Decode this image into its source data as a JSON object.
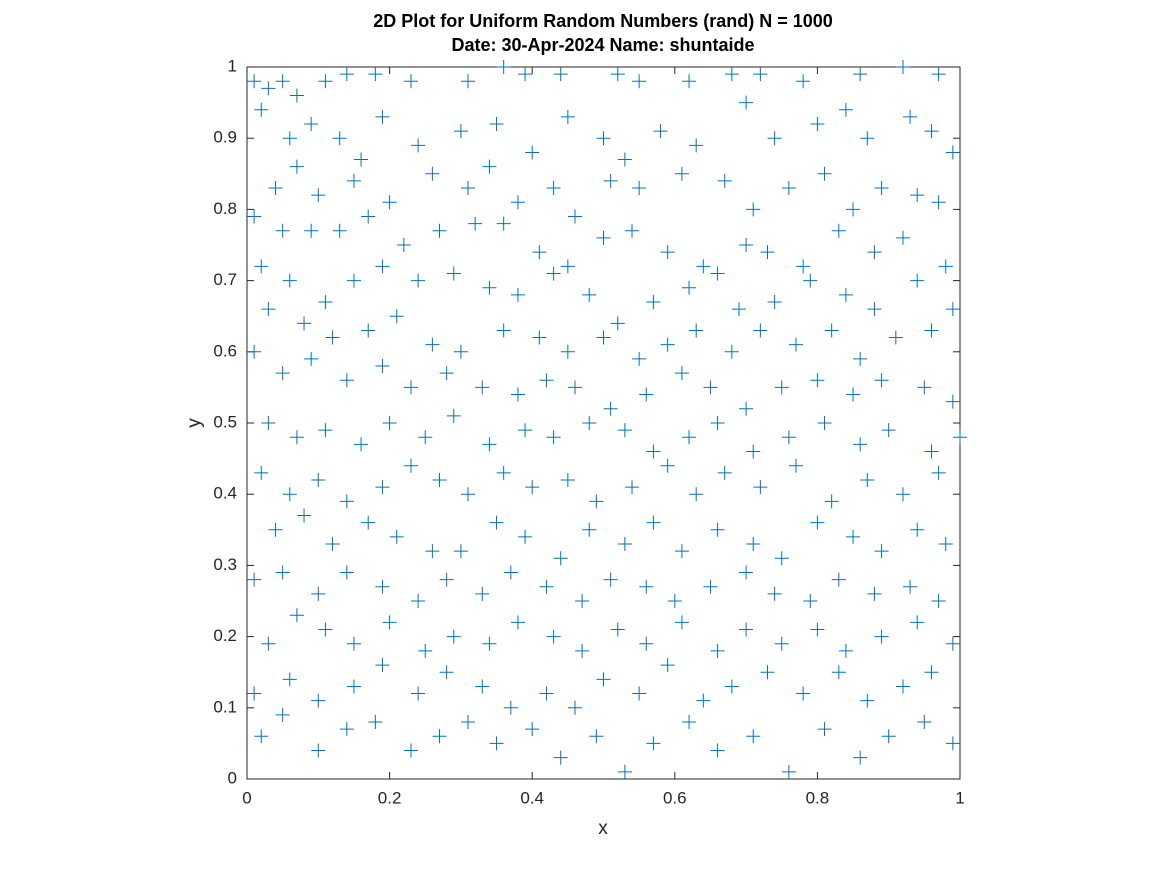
{
  "chart_data": {
    "type": "scatter",
    "title": "2D Plot for Uniform Random Numbers (rand) N = 1000",
    "subtitle": "Date: 30-Apr-2024 Name: shuntaide",
    "x_label": "x",
    "y_label": "y",
    "xlim": [
      0,
      1
    ],
    "ylim": [
      0,
      1
    ],
    "xticks": [
      0,
      0.2,
      0.4,
      0.6,
      0.8,
      1
    ],
    "yticks": [
      0,
      0.1,
      0.2,
      0.3,
      0.4,
      0.5,
      0.6,
      0.7,
      0.8,
      0.9,
      1
    ],
    "marker": "+",
    "color": "#0072bd",
    "grid": false,
    "x": [
      0.01,
      0.03,
      0.05,
      0.07,
      0.11,
      0.14,
      0.18,
      0.23,
      0.31,
      0.36,
      0.39,
      0.44,
      0.52,
      0.55,
      0.62,
      0.68,
      0.72,
      0.78,
      0.86,
      0.92,
      0.97,
      0.02,
      0.06,
      0.09,
      0.13,
      0.16,
      0.19,
      0.24,
      0.3,
      0.35,
      0.4,
      0.45,
      0.5,
      0.53,
      0.58,
      0.63,
      0.7,
      0.74,
      0.8,
      0.84,
      0.87,
      0.93,
      0.96,
      0.99,
      0.04,
      0.07,
      0.1,
      0.15,
      0.2,
      0.26,
      0.31,
      0.34,
      0.38,
      0.43,
      0.46,
      0.51,
      0.55,
      0.61,
      0.67,
      0.71,
      0.76,
      0.81,
      0.85,
      0.89,
      0.94,
      0.97,
      0.01,
      0.05,
      0.09,
      0.13,
      0.17,
      0.22,
      0.27,
      0.32,
      0.36,
      0.41,
      0.45,
      0.5,
      0.54,
      0.59,
      0.64,
      0.7,
      0.73,
      0.78,
      0.83,
      0.88,
      0.92,
      0.98,
      0.02,
      0.06,
      0.11,
      0.15,
      0.19,
      0.24,
      0.29,
      0.34,
      0.38,
      0.43,
      0.48,
      0.52,
      0.57,
      0.62,
      0.66,
      0.69,
      0.74,
      0.79,
      0.84,
      0.88,
      0.94,
      0.99,
      0.03,
      0.08,
      0.12,
      0.17,
      0.21,
      0.26,
      0.3,
      0.36,
      0.41,
      0.45,
      0.5,
      0.55,
      0.59,
      0.63,
      0.68,
      0.72,
      0.77,
      0.82,
      0.86,
      0.91,
      0.96,
      0.01,
      0.05,
      0.09,
      0.14,
      0.19,
      0.23,
      0.28,
      0.33,
      0.38,
      0.42,
      0.46,
      0.51,
      0.56,
      0.61,
      0.65,
      0.7,
      0.75,
      0.8,
      0.85,
      0.89,
      0.95,
      0.99,
      0.03,
      0.07,
      0.11,
      0.16,
      0.2,
      0.25,
      0.29,
      0.34,
      0.39,
      0.43,
      0.48,
      0.53,
      0.57,
      0.62,
      0.66,
      0.71,
      0.76,
      0.81,
      0.86,
      0.9,
      0.96,
      1.0,
      0.02,
      0.06,
      0.1,
      0.14,
      0.19,
      0.23,
      0.27,
      0.31,
      0.36,
      0.4,
      0.45,
      0.49,
      0.54,
      0.59,
      0.63,
      0.67,
      0.72,
      0.77,
      0.82,
      0.87,
      0.92,
      0.97,
      0.04,
      0.08,
      0.12,
      0.17,
      0.21,
      0.26,
      0.3,
      0.35,
      0.39,
      0.44,
      0.48,
      0.53,
      0.57,
      0.61,
      0.66,
      0.71,
      0.75,
      0.8,
      0.85,
      0.89,
      0.94,
      0.98,
      0.01,
      0.05,
      0.1,
      0.14,
      0.19,
      0.24,
      0.28,
      0.33,
      0.37,
      0.42,
      0.47,
      0.51,
      0.56,
      0.6,
      0.65,
      0.7,
      0.74,
      0.79,
      0.83,
      0.88,
      0.93,
      0.97,
      0.03,
      0.07,
      0.11,
      0.15,
      0.2,
      0.25,
      0.29,
      0.34,
      0.38,
      0.43,
      0.47,
      0.52,
      0.56,
      0.61,
      0.66,
      0.7,
      0.75,
      0.8,
      0.84,
      0.89,
      0.94,
      0.99,
      0.01,
      0.06,
      0.1,
      0.15,
      0.19,
      0.24,
      0.28,
      0.33,
      0.37,
      0.42,
      0.46,
      0.5,
      0.55,
      0.59,
      0.64,
      0.68,
      0.73,
      0.78,
      0.83,
      0.87,
      0.92,
      0.96,
      0.02,
      0.05,
      0.1,
      0.14,
      0.18,
      0.23,
      0.27,
      0.31,
      0.35,
      0.4,
      0.44,
      0.49,
      0.53,
      0.57,
      0.62,
      0.66,
      0.71,
      0.76,
      0.81,
      0.86,
      0.9,
      0.95,
      0.99
    ],
    "values": [
      0.98,
      0.97,
      0.98,
      0.96,
      0.98,
      0.99,
      0.99,
      0.98,
      0.98,
      1.0,
      0.99,
      0.99,
      0.99,
      0.98,
      0.98,
      0.99,
      0.99,
      0.98,
      0.99,
      1.0,
      0.99,
      0.94,
      0.9,
      0.92,
      0.9,
      0.87,
      0.93,
      0.89,
      0.91,
      0.92,
      0.88,
      0.93,
      0.9,
      0.87,
      0.91,
      0.89,
      0.95,
      0.9,
      0.92,
      0.94,
      0.9,
      0.93,
      0.91,
      0.88,
      0.83,
      0.86,
      0.82,
      0.84,
      0.81,
      0.85,
      0.83,
      0.86,
      0.81,
      0.83,
      0.79,
      0.84,
      0.83,
      0.85,
      0.84,
      0.8,
      0.83,
      0.85,
      0.8,
      0.83,
      0.82,
      0.81,
      0.79,
      0.77,
      0.77,
      0.77,
      0.79,
      0.75,
      0.77,
      0.78,
      0.78,
      0.74,
      0.72,
      0.76,
      0.77,
      0.74,
      0.72,
      0.75,
      0.74,
      0.72,
      0.77,
      0.74,
      0.76,
      0.72,
      0.72,
      0.7,
      0.67,
      0.7,
      0.72,
      0.7,
      0.71,
      0.69,
      0.68,
      0.71,
      0.68,
      0.64,
      0.67,
      0.69,
      0.71,
      0.66,
      0.67,
      0.7,
      0.68,
      0.66,
      0.7,
      0.66,
      0.66,
      0.64,
      0.62,
      0.63,
      0.65,
      0.61,
      0.6,
      0.63,
      0.62,
      0.6,
      0.62,
      0.59,
      0.61,
      0.63,
      0.6,
      0.63,
      0.61,
      0.63,
      0.59,
      0.62,
      0.63,
      0.6,
      0.57,
      0.59,
      0.56,
      0.58,
      0.55,
      0.57,
      0.55,
      0.54,
      0.56,
      0.55,
      0.52,
      0.54,
      0.57,
      0.55,
      0.52,
      0.55,
      0.56,
      0.54,
      0.56,
      0.55,
      0.53,
      0.5,
      0.48,
      0.49,
      0.47,
      0.5,
      0.48,
      0.51,
      0.47,
      0.49,
      0.48,
      0.5,
      0.49,
      0.46,
      0.48,
      0.5,
      0.46,
      0.48,
      0.5,
      0.47,
      0.49,
      0.46,
      0.48,
      0.43,
      0.4,
      0.42,
      0.39,
      0.41,
      0.44,
      0.42,
      0.4,
      0.43,
      0.41,
      0.42,
      0.39,
      0.41,
      0.44,
      0.4,
      0.43,
      0.41,
      0.44,
      0.39,
      0.42,
      0.4,
      0.43,
      0.35,
      0.37,
      0.33,
      0.36,
      0.34,
      0.32,
      0.32,
      0.36,
      0.34,
      0.31,
      0.35,
      0.33,
      0.36,
      0.32,
      0.35,
      0.33,
      0.31,
      0.36,
      0.34,
      0.32,
      0.35,
      0.33,
      0.28,
      0.29,
      0.26,
      0.29,
      0.27,
      0.25,
      0.28,
      0.26,
      0.29,
      0.27,
      0.25,
      0.28,
      0.27,
      0.25,
      0.27,
      0.29,
      0.26,
      0.25,
      0.28,
      0.26,
      0.27,
      0.25,
      0.19,
      0.23,
      0.21,
      0.19,
      0.22,
      0.18,
      0.2,
      0.19,
      0.22,
      0.2,
      0.18,
      0.21,
      0.19,
      0.22,
      0.18,
      0.21,
      0.19,
      0.21,
      0.18,
      0.2,
      0.22,
      0.19,
      0.12,
      0.14,
      0.11,
      0.13,
      0.16,
      0.12,
      0.15,
      0.13,
      0.1,
      0.12,
      0.1,
      0.14,
      0.12,
      0.16,
      0.11,
      0.13,
      0.15,
      0.12,
      0.15,
      0.11,
      0.13,
      0.15,
      0.06,
      0.09,
      0.04,
      0.07,
      0.08,
      0.04,
      0.06,
      0.08,
      0.05,
      0.07,
      0.03,
      0.06,
      0.01,
      0.05,
      0.08,
      0.04,
      0.06,
      0.01,
      0.07,
      0.03,
      0.06,
      0.08,
      0.05
    ]
  }
}
